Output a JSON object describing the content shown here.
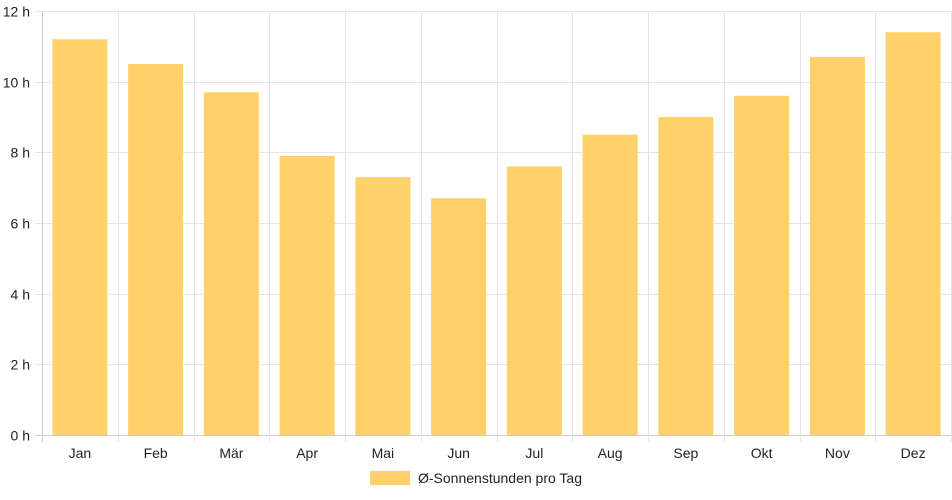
{
  "chart_data": {
    "type": "bar",
    "categories": [
      "Jan",
      "Feb",
      "Mär",
      "Apr",
      "Mai",
      "Jun",
      "Jul",
      "Aug",
      "Sep",
      "Okt",
      "Nov",
      "Dez"
    ],
    "series": [
      {
        "name": "Ø-Sonnenstunden pro Tag",
        "values": [
          11.2,
          10.5,
          9.7,
          7.9,
          7.3,
          6.7,
          7.6,
          8.5,
          9.0,
          9.6,
          10.7,
          11.4
        ]
      }
    ],
    "y_unit_suffix": " h",
    "ylim": [
      0,
      12
    ],
    "yticks": [
      0,
      2,
      4,
      6,
      8,
      10,
      12
    ],
    "grid": true,
    "legend_position": "bottom",
    "colors": {
      "bar": "#fed16a",
      "grid": "#e5e5e5",
      "axis": "#cccccc"
    }
  }
}
